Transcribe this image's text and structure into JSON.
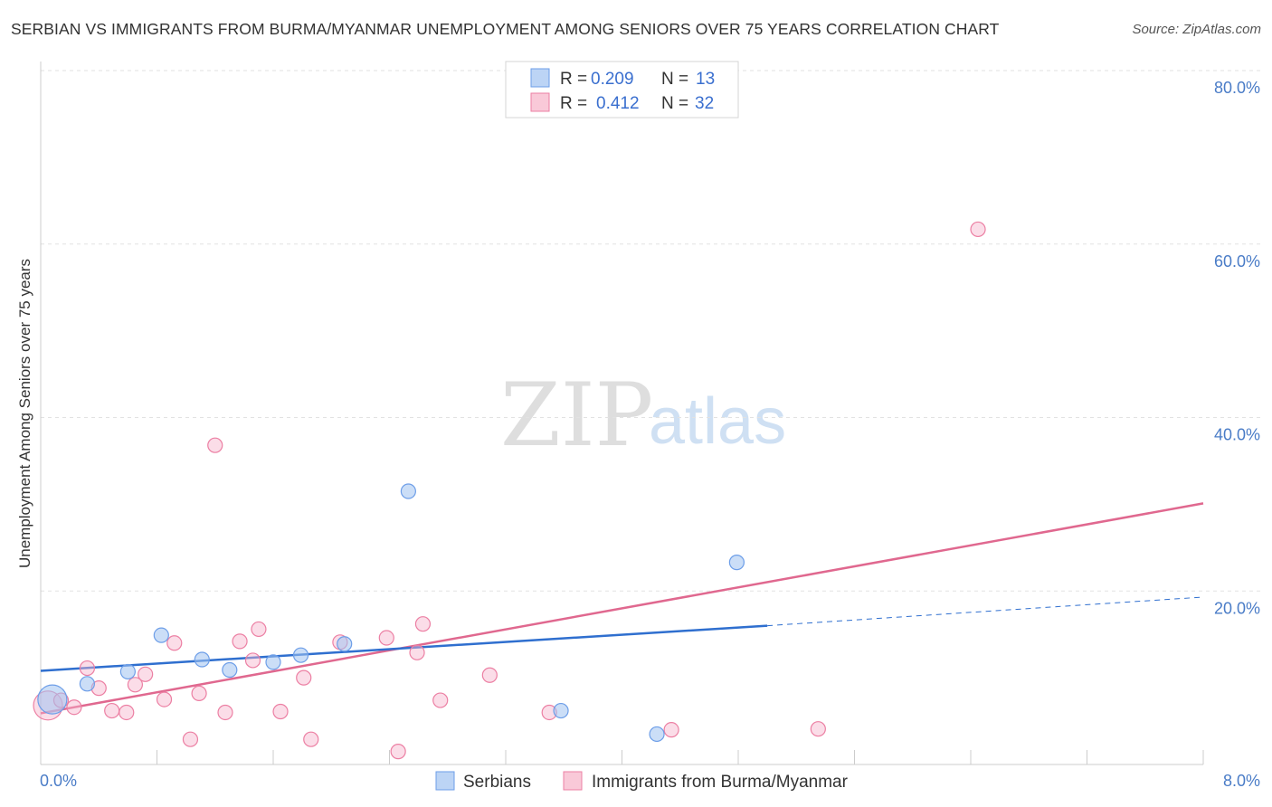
{
  "header": {
    "title": "SERBIAN VS IMMIGRANTS FROM BURMA/MYANMAR UNEMPLOYMENT AMONG SENIORS OVER 75 YEARS CORRELATION CHART",
    "source": "Source: ZipAtlas.com"
  },
  "watermark": {
    "zip": "ZIP",
    "atlas": "atlas"
  },
  "legend_top": {
    "rows": [
      {
        "r_label": "R =",
        "r_value": "0.209",
        "n_label": "N =",
        "n_value": "13"
      },
      {
        "r_label": "R =",
        "r_value": "0.412",
        "n_label": "N =",
        "n_value": "32"
      }
    ]
  },
  "chart_data": {
    "type": "scatter",
    "title": "SERBIAN VS IMMIGRANTS FROM BURMA/MYANMAR UNEMPLOYMENT AMONG SENIORS OVER 75 YEARS CORRELATION CHART",
    "xlabel": "",
    "ylabel": "Unemployment Among Seniors over 75 years",
    "xlim": [
      0,
      8
    ],
    "ylim": [
      0,
      80
    ],
    "x_tick_labels": [
      "0.0%",
      "8.0%"
    ],
    "y_tick_labels": [
      "20.0%",
      "40.0%",
      "60.0%",
      "80.0%"
    ],
    "y_ticks": [
      20,
      40,
      60,
      80
    ],
    "colors": {
      "serbians": "#6d9ee8",
      "burma": "#ec7fa3",
      "serbians_line": "#2f6fcf",
      "burma_line": "#e0688f"
    },
    "series": [
      {
        "name": "Serbians",
        "r": 0.209,
        "n": 13,
        "trend": {
          "x0": 0.0,
          "y0": 10.8,
          "x1": 5.0,
          "y1": 16.0,
          "dash_x1": 8.0,
          "dash_y1": 19.3
        },
        "points": [
          {
            "x": 0.08,
            "y": 7.5,
            "big": true
          },
          {
            "x": 0.32,
            "y": 9.3
          },
          {
            "x": 0.6,
            "y": 10.7
          },
          {
            "x": 0.83,
            "y": 14.9
          },
          {
            "x": 1.11,
            "y": 12.1
          },
          {
            "x": 1.3,
            "y": 10.9
          },
          {
            "x": 1.6,
            "y": 11.8
          },
          {
            "x": 1.79,
            "y": 12.6
          },
          {
            "x": 2.09,
            "y": 13.9
          },
          {
            "x": 2.53,
            "y": 31.5
          },
          {
            "x": 3.58,
            "y": 6.2
          },
          {
            "x": 4.79,
            "y": 23.3
          },
          {
            "x": 4.24,
            "y": 3.5
          }
        ]
      },
      {
        "name": "Immigrants from Burma/Myanmar",
        "r": 0.412,
        "n": 32,
        "trend": {
          "x0": 0.0,
          "y0": 5.9,
          "x1": 8.0,
          "y1": 30.1
        },
        "points": [
          {
            "x": 0.05,
            "y": 6.8,
            "big": true
          },
          {
            "x": 0.14,
            "y": 7.4
          },
          {
            "x": 0.23,
            "y": 6.6
          },
          {
            "x": 0.32,
            "y": 11.1
          },
          {
            "x": 0.4,
            "y": 8.8
          },
          {
            "x": 0.49,
            "y": 6.2
          },
          {
            "x": 0.59,
            "y": 6.0
          },
          {
            "x": 0.65,
            "y": 9.2
          },
          {
            "x": 0.72,
            "y": 10.4
          },
          {
            "x": 0.85,
            "y": 7.5
          },
          {
            "x": 0.92,
            "y": 14.0
          },
          {
            "x": 1.03,
            "y": 2.9
          },
          {
            "x": 1.09,
            "y": 8.2
          },
          {
            "x": 1.2,
            "y": 36.8
          },
          {
            "x": 1.27,
            "y": 6.0
          },
          {
            "x": 1.37,
            "y": 14.2
          },
          {
            "x": 1.46,
            "y": 12.0
          },
          {
            "x": 1.5,
            "y": 15.6
          },
          {
            "x": 1.65,
            "y": 6.1
          },
          {
            "x": 1.81,
            "y": 10.0
          },
          {
            "x": 1.86,
            "y": 2.9
          },
          {
            "x": 2.06,
            "y": 14.1
          },
          {
            "x": 2.38,
            "y": 14.6
          },
          {
            "x": 2.46,
            "y": 1.5
          },
          {
            "x": 2.59,
            "y": 12.9
          },
          {
            "x": 2.63,
            "y": 16.2
          },
          {
            "x": 2.75,
            "y": 7.4
          },
          {
            "x": 3.09,
            "y": 10.3
          },
          {
            "x": 3.5,
            "y": 6.0
          },
          {
            "x": 4.34,
            "y": 4.0
          },
          {
            "x": 5.35,
            "y": 4.1
          },
          {
            "x": 6.45,
            "y": 61.7
          }
        ]
      }
    ]
  },
  "legend_bottom": {
    "items": [
      {
        "label": "Serbians"
      },
      {
        "label": "Immigrants from Burma/Myanmar"
      }
    ]
  }
}
